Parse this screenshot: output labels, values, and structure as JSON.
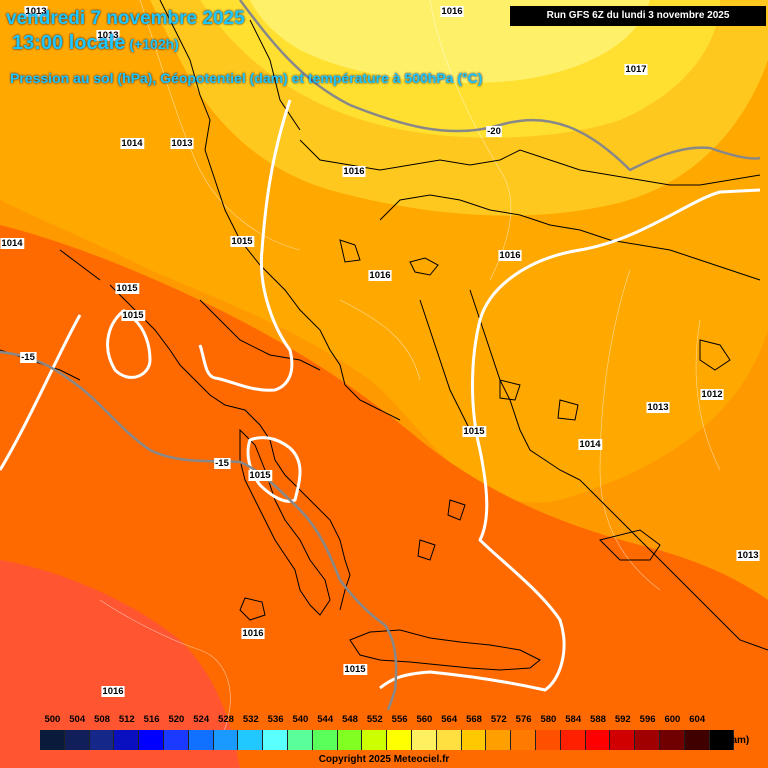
{
  "header": {
    "date_line": "vendredi 7 novembre 2025",
    "time_line": "13:00 locale",
    "lead_time": "(+102h)",
    "subtitle": "Pression au sol (hPa), Géopotentiel (dam) et température à 500hPa (°C)",
    "run_info": "Run GFS 6Z du lundi 3 novembre 2025"
  },
  "pressure_labels": [
    "1016",
    "1013",
    "1014",
    "1013",
    "1016",
    "1017",
    "1014",
    "1015",
    "1016",
    "1016",
    "1015",
    "1015",
    "1013",
    "1012",
    "1015",
    "1014",
    "1015",
    "1016",
    "1015",
    "1013",
    "1016",
    "1013"
  ],
  "temperature_labels": [
    "-20",
    "-15",
    "-15"
  ],
  "legend": {
    "ticks": [
      "500",
      "504",
      "508",
      "512",
      "516",
      "520",
      "524",
      "528",
      "532",
      "536",
      "540",
      "544",
      "548",
      "552",
      "556",
      "560",
      "564",
      "568",
      "572",
      "576",
      "580",
      "584",
      "588",
      "592",
      "596",
      "600",
      "604"
    ],
    "colors": [
      "#0a1a3a",
      "#101f5a",
      "#15288a",
      "#0a10c0",
      "#0000ff",
      "#1a3aff",
      "#1070ff",
      "#1a9aff",
      "#20c8ff",
      "#5affff",
      "#5aff9a",
      "#5aff5a",
      "#80ff20",
      "#ccff00",
      "#ffff00",
      "#fff060",
      "#ffe040",
      "#ffc800",
      "#ffa000",
      "#ff7a00",
      "#ff5000",
      "#ff2000",
      "#ff0000",
      "#d00000",
      "#a00000",
      "#700000",
      "#400000",
      "#000000"
    ],
    "unit": "(dam)"
  },
  "copyright": "Copyright 2025 Meteociel.fr"
}
